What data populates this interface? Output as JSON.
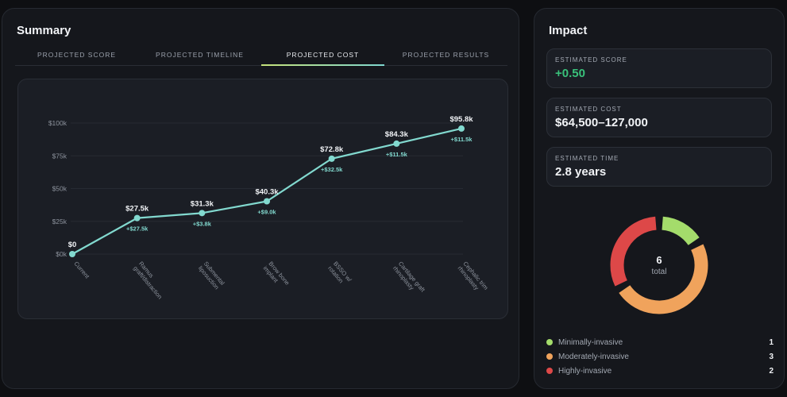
{
  "summary": {
    "title": "Summary",
    "tabs": [
      {
        "label": "PROJECTED SCORE",
        "active": false
      },
      {
        "label": "PROJECTED TIMELINE",
        "active": false
      },
      {
        "label": "PROJECTED COST",
        "active": true
      },
      {
        "label": "PROJECTED RESULTS",
        "active": false
      }
    ]
  },
  "chart_data": {
    "type": "line",
    "title": "",
    "xlabel": "",
    "ylabel": "",
    "ylim": [
      0,
      100000
    ],
    "yticks": [
      0,
      25000,
      50000,
      75000,
      100000
    ],
    "ytick_labels": [
      "$0k",
      "$25k",
      "$50k",
      "$75k",
      "$100k"
    ],
    "grid": true,
    "line_color": "#82d9cf",
    "categories": [
      "Current",
      "Ramus graft/distraction",
      "Submental liposuction",
      "Brow bone implant",
      "BSSO w/ rotation",
      "Cartilage graft rhinoplasty",
      "Cephalic trim rhinoplasty"
    ],
    "category_lines": [
      [
        "Current"
      ],
      [
        "Ramus",
        "graft/distraction"
      ],
      [
        "Submental",
        "liposuction"
      ],
      [
        "Brow bone",
        "implant"
      ],
      [
        "BSSO w/",
        "rotation"
      ],
      [
        "Cartilage graft",
        "rhinoplasty"
      ],
      [
        "Cephalic trim",
        "rhinoplasty"
      ]
    ],
    "values": [
      0,
      27500,
      31300,
      40300,
      72800,
      84300,
      95800
    ],
    "value_labels": [
      "$0",
      "$27.5k",
      "$31.3k",
      "$40.3k",
      "$72.8k",
      "$84.3k",
      "$95.8k"
    ],
    "delta_labels": [
      "",
      "+$27.5k",
      "+$3.8k",
      "+$9.0k",
      "+$32.5k",
      "+$11.5k",
      "+$11.5k"
    ]
  },
  "impact": {
    "title": "Impact",
    "stats": [
      {
        "label": "ESTIMATED SCORE",
        "value": "+0.50"
      },
      {
        "label": "ESTIMATED COST",
        "value": "$64,500–127,000"
      },
      {
        "label": "ESTIMATED TIME",
        "value": "2.8 years"
      }
    ],
    "donut": {
      "total": "6",
      "total_label": "total",
      "segments": [
        {
          "label": "Minimally-invasive",
          "count": 1,
          "count_text": "1",
          "color": "#a4dc6b"
        },
        {
          "label": "Moderately-invasive",
          "count": 3,
          "count_text": "3",
          "color": "#f0a35c"
        },
        {
          "label": "Highly-invasive",
          "count": 2,
          "count_text": "2",
          "color": "#dd4848"
        }
      ]
    }
  }
}
